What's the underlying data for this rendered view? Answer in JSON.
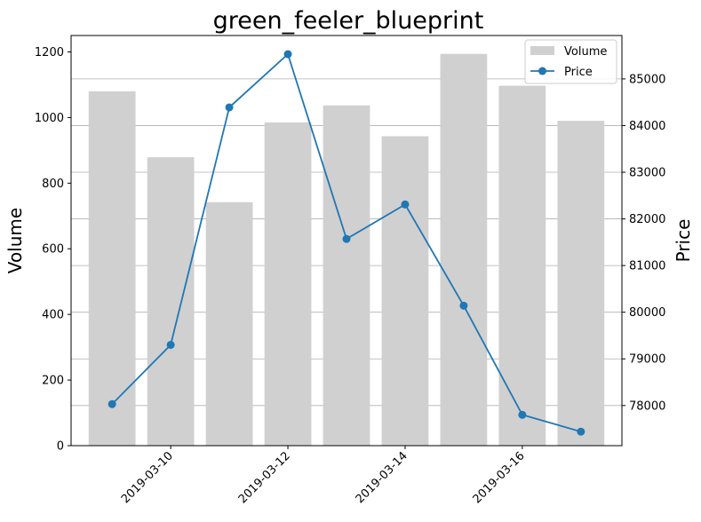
{
  "chart_data": {
    "type": "bar+line",
    "title": "green_feeler_blueprint",
    "ylabel_left": "Volume",
    "ylabel_right": "Price",
    "dates": [
      "2019-03-09",
      "2019-03-10",
      "2019-03-11",
      "2019-03-12",
      "2019-03-13",
      "2019-03-14",
      "2019-03-15",
      "2019-03-16",
      "2019-03-17"
    ],
    "x_tick_labels": [
      "2019-03-10",
      "2019-03-12",
      "2019-03-14",
      "2019-03-16"
    ],
    "volume": [
      1080,
      879,
      742,
      985,
      1037,
      943,
      1194,
      1097,
      990
    ],
    "price": [
      78030,
      79300,
      84390,
      85530,
      81570,
      82310,
      80140,
      77800,
      77440
    ],
    "ylim_left": [
      0,
      1250
    ],
    "ylim_right": [
      77140,
      85930
    ],
    "yticks_left": [
      0,
      200,
      400,
      600,
      800,
      1000,
      1200
    ],
    "yticks_right": [
      78000,
      79000,
      80000,
      81000,
      82000,
      83000,
      84000,
      85000
    ],
    "grid": "right-axis horizontal",
    "legend_position": "top-right",
    "series": [
      {
        "name": "Volume",
        "kind": "bar",
        "color": "#d0d0d0"
      },
      {
        "name": "Price",
        "kind": "line",
        "color": "#1f77b4"
      }
    ]
  }
}
